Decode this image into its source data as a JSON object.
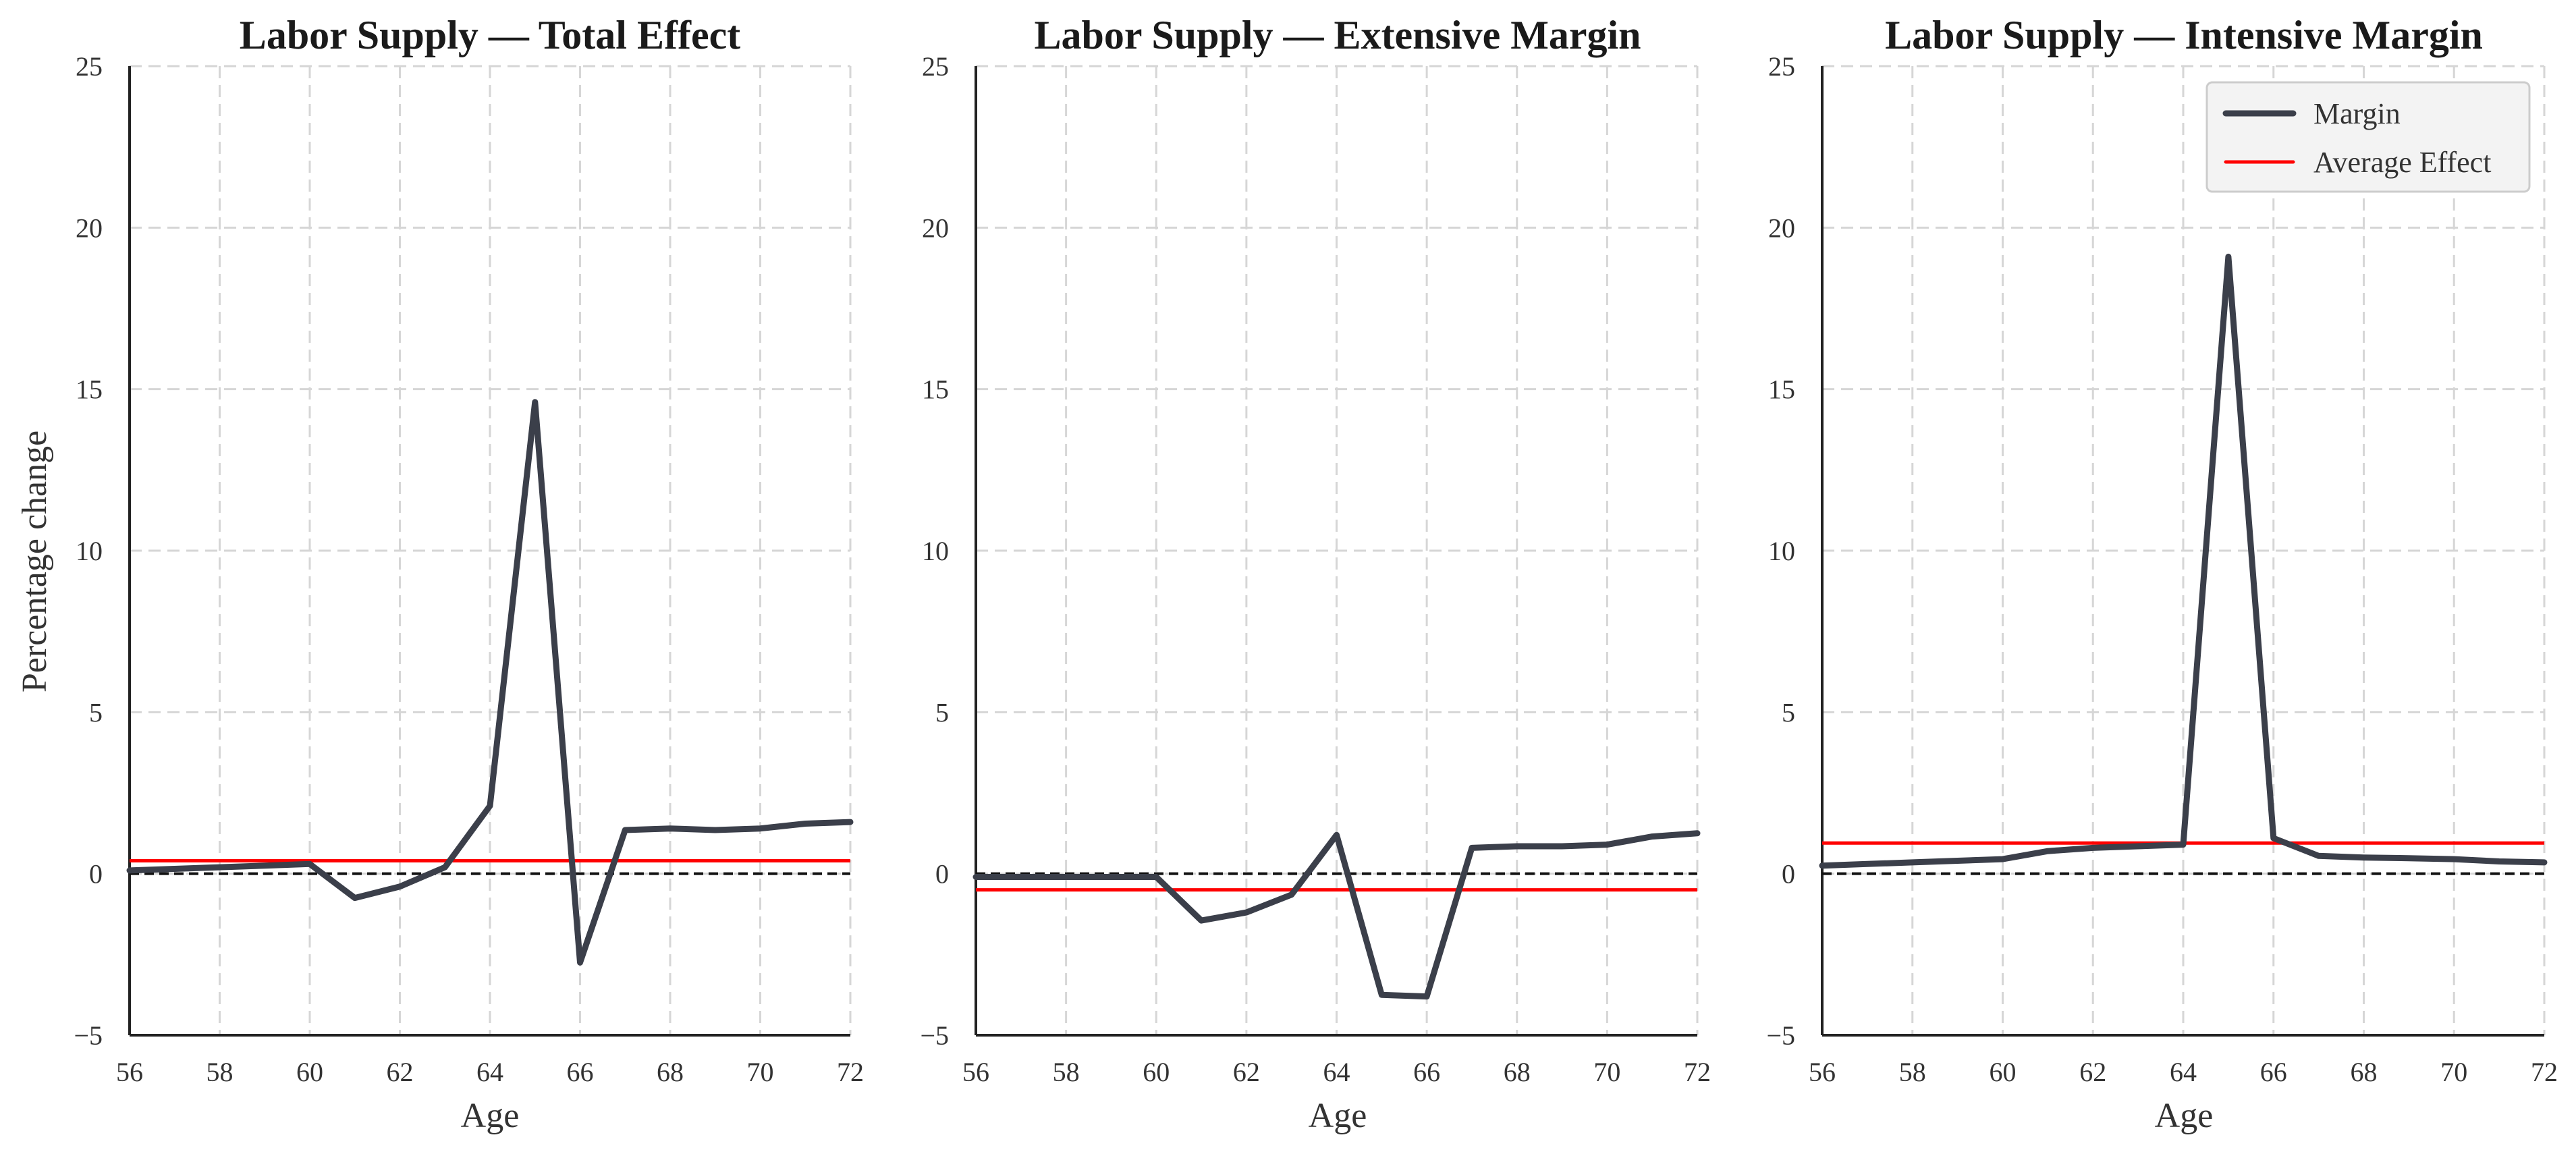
{
  "chart_data": [
    {
      "type": "line",
      "title": "Labor Supply — Total Effect",
      "xlabel": "Age",
      "ylabel": "Percentage change",
      "xlim": [
        56,
        72
      ],
      "ylim": [
        -5,
        25
      ],
      "xticks": [
        56,
        58,
        60,
        62,
        64,
        66,
        68,
        70,
        72
      ],
      "yticks": [
        -5,
        0,
        5,
        10,
        15,
        20,
        25
      ],
      "ytick_labels": [
        "−5",
        "0",
        "5",
        "10",
        "15",
        "20",
        "25"
      ],
      "grid": true,
      "x": [
        56,
        57,
        58,
        59,
        60,
        61,
        62,
        63,
        64,
        65,
        66,
        67,
        68,
        69,
        70,
        71,
        72
      ],
      "series": [
        {
          "values": [
            0.1,
            0.15,
            0.2,
            0.25,
            0.3,
            -0.75,
            -0.4,
            0.2,
            2.1,
            14.6,
            -2.75,
            1.35,
            1.4,
            1.35,
            1.4,
            1.55,
            1.6
          ]
        }
      ],
      "average_effect": 0.4,
      "reference_line": 0,
      "show_legend": false
    },
    {
      "type": "line",
      "title": "Labor Supply — Extensive Margin",
      "xlabel": "Age",
      "ylabel": "",
      "xlim": [
        56,
        72
      ],
      "ylim": [
        -5,
        25
      ],
      "xticks": [
        56,
        58,
        60,
        62,
        64,
        66,
        68,
        70,
        72
      ],
      "yticks": [
        -5,
        0,
        5,
        10,
        15,
        20,
        25
      ],
      "ytick_labels": [
        "−5",
        "0",
        "5",
        "10",
        "15",
        "20",
        "25"
      ],
      "grid": true,
      "x": [
        56,
        57,
        58,
        59,
        60,
        61,
        62,
        63,
        64,
        65,
        66,
        67,
        68,
        69,
        70,
        71,
        72
      ],
      "series": [
        {
          "values": [
            -0.1,
            -0.1,
            -0.1,
            -0.1,
            -0.1,
            -1.45,
            -1.2,
            -0.65,
            1.2,
            -3.75,
            -3.8,
            0.8,
            0.85,
            0.85,
            0.9,
            1.15,
            1.25
          ]
        }
      ],
      "average_effect": -0.5,
      "reference_line": 0,
      "show_legend": false
    },
    {
      "type": "line",
      "title": "Labor Supply — Intensive Margin",
      "xlabel": "Age",
      "ylabel": "",
      "xlim": [
        56,
        72
      ],
      "ylim": [
        -5,
        25
      ],
      "xticks": [
        56,
        58,
        60,
        62,
        64,
        66,
        68,
        70,
        72
      ],
      "yticks": [
        -5,
        0,
        5,
        10,
        15,
        20,
        25
      ],
      "ytick_labels": [
        "−5",
        "0",
        "5",
        "10",
        "15",
        "20",
        "25"
      ],
      "grid": true,
      "x": [
        56,
        57,
        58,
        59,
        60,
        61,
        62,
        63,
        64,
        65,
        66,
        67,
        68,
        69,
        70,
        71,
        72
      ],
      "series": [
        {
          "values": [
            0.25,
            0.3,
            0.35,
            0.4,
            0.45,
            0.7,
            0.8,
            0.85,
            0.9,
            19.1,
            1.1,
            0.55,
            0.5,
            0.48,
            0.45,
            0.38,
            0.35
          ]
        }
      ],
      "average_effect": 0.95,
      "reference_line": 0,
      "show_legend": true,
      "legend_position": "top-right"
    }
  ],
  "legend": {
    "items": [
      {
        "label": "Margin",
        "kind": "series"
      },
      {
        "label": "Average Effect",
        "kind": "average"
      }
    ]
  },
  "colors": {
    "series": "#3b3f4a",
    "average": "#ff0000",
    "reference": "#111111",
    "grid": "#d6d6d6",
    "legend_bg": "#f3f3f3",
    "legend_border": "#cccccc"
  }
}
